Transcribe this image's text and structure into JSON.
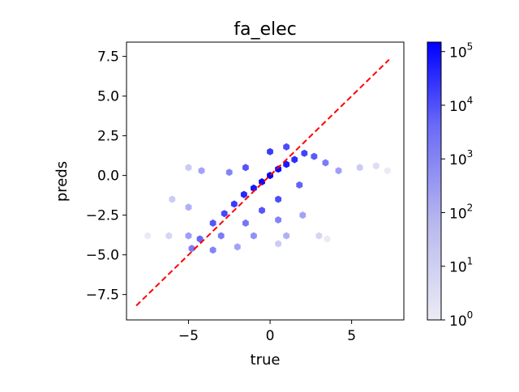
{
  "chart_data": {
    "type": "hexbin",
    "title": "fa_elec",
    "xlabel": "true",
    "ylabel": "preds",
    "xlim": [
      -8.8,
      8.2
    ],
    "ylim": [
      -9.1,
      8.4
    ],
    "x_ticks": [
      -5,
      0,
      5
    ],
    "x_tick_labels": [
      "−5",
      "0",
      "5"
    ],
    "y_ticks": [
      -7.5,
      -5.0,
      -2.5,
      0.0,
      2.5,
      5.0,
      7.5
    ],
    "y_tick_labels": [
      "−7.5",
      "−5.0",
      "−2.5",
      "0.0",
      "2.5",
      "5.0",
      "7.5"
    ],
    "reference_line": {
      "x": [
        -8.2,
        7.3
      ],
      "y": [
        -8.2,
        7.3
      ],
      "color": "#ff0000",
      "style": "dashed"
    },
    "colorbar": {
      "scale": "log",
      "range": [
        1,
        150000
      ],
      "ticks": [
        1,
        10,
        100,
        1000,
        10000,
        100000
      ],
      "tick_labels": [
        {
          "base": "10",
          "exp": "0"
        },
        {
          "base": "10",
          "exp": "1"
        },
        {
          "base": "10",
          "exp": "2"
        },
        {
          "base": "10",
          "exp": "3"
        },
        {
          "base": "10",
          "exp": "4"
        },
        {
          "base": "10",
          "exp": "5"
        }
      ],
      "color_low": "#ebebf5",
      "color_high": "#0000ff"
    },
    "hexbin": {
      "gridsize_x": 0.37,
      "bins": [
        {
          "x": 0.0,
          "y": 0.0,
          "count": 150000
        },
        {
          "x": -0.5,
          "y": -0.4,
          "count": 90000
        },
        {
          "x": 0.5,
          "y": 0.4,
          "count": 90000
        },
        {
          "x": -1.0,
          "y": -0.8,
          "count": 50000
        },
        {
          "x": 1.0,
          "y": 0.7,
          "count": 40000
        },
        {
          "x": -1.6,
          "y": -1.2,
          "count": 20000
        },
        {
          "x": 1.5,
          "y": 1.0,
          "count": 15000
        },
        {
          "x": -2.2,
          "y": -1.8,
          "count": 8000
        },
        {
          "x": -2.8,
          "y": -2.4,
          "count": 4000
        },
        {
          "x": -3.5,
          "y": -3.0,
          "count": 2000
        },
        {
          "x": -4.3,
          "y": -4.0,
          "count": 800
        },
        {
          "x": -4.8,
          "y": -4.6,
          "count": 300
        },
        {
          "x": 2.1,
          "y": 1.4,
          "count": 5000
        },
        {
          "x": 2.7,
          "y": 1.2,
          "count": 1500
        },
        {
          "x": 3.4,
          "y": 0.8,
          "count": 300
        },
        {
          "x": 4.2,
          "y": 0.3,
          "count": 50
        },
        {
          "x": 5.5,
          "y": 0.5,
          "count": 5
        },
        {
          "x": 6.5,
          "y": 0.6,
          "count": 2
        },
        {
          "x": 7.2,
          "y": 0.3,
          "count": 1
        },
        {
          "x": -5.0,
          "y": 0.5,
          "count": 5
        },
        {
          "x": -4.2,
          "y": 0.3,
          "count": 40
        },
        {
          "x": -2.5,
          "y": 0.2,
          "count": 200
        },
        {
          "x": -1.5,
          "y": 0.5,
          "count": 2000
        },
        {
          "x": 0.0,
          "y": 1.5,
          "count": 8000
        },
        {
          "x": 1.0,
          "y": 1.8,
          "count": 3000
        },
        {
          "x": 0.5,
          "y": -1.5,
          "count": 3000
        },
        {
          "x": 1.8,
          "y": -0.6,
          "count": 1000
        },
        {
          "x": -0.5,
          "y": -2.2,
          "count": 2000
        },
        {
          "x": -1.5,
          "y": -3.0,
          "count": 400
        },
        {
          "x": 0.5,
          "y": -2.8,
          "count": 200
        },
        {
          "x": 2.0,
          "y": -2.5,
          "count": 40
        },
        {
          "x": -6.0,
          "y": -1.5,
          "count": 5
        },
        {
          "x": -5.0,
          "y": -2.0,
          "count": 20
        },
        {
          "x": -7.5,
          "y": -3.8,
          "count": 1
        },
        {
          "x": -6.2,
          "y": -3.8,
          "count": 3
        },
        {
          "x": -5.0,
          "y": -3.8,
          "count": 50
        },
        {
          "x": -3.0,
          "y": -3.8,
          "count": 300
        },
        {
          "x": -1.0,
          "y": -3.8,
          "count": 100
        },
        {
          "x": 1.0,
          "y": -3.8,
          "count": 20
        },
        {
          "x": 3.0,
          "y": -3.8,
          "count": 3
        },
        {
          "x": -3.5,
          "y": -4.7,
          "count": 200
        },
        {
          "x": -2.0,
          "y": -4.5,
          "count": 40
        },
        {
          "x": 0.5,
          "y": -4.3,
          "count": 5
        },
        {
          "x": 3.5,
          "y": -4.0,
          "count": 1
        }
      ]
    }
  }
}
